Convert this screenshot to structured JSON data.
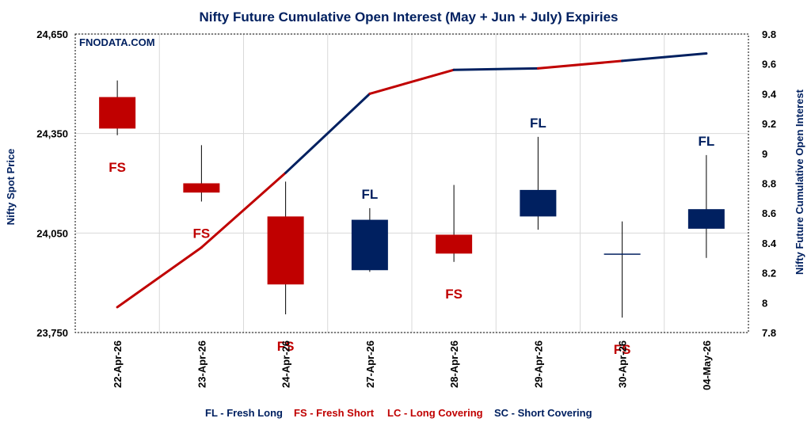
{
  "chart_data": {
    "type": "candlestick",
    "title": "Nifty Future Cumulative Open Interest (May + Jun + July) Expiries",
    "watermark": "FNODATA.COM",
    "y_left_label": "Nifty Spot Price",
    "y_right_label": "Nifty Future Cumulative Open Interest",
    "y_left_ticks": [
      "24,650",
      "24,350",
      "24,050",
      "23,750"
    ],
    "y_left_range": [
      23750,
      24650
    ],
    "y_right_ticks": [
      "9.8",
      "9.6",
      "9.4",
      "9.2",
      "9",
      "8.8",
      "8.6",
      "8.4",
      "8.2",
      "8",
      "7.8"
    ],
    "y_right_range": [
      7.8,
      9.8
    ],
    "categories": [
      "22-Apr-26",
      "23-Apr-26",
      "24-Apr-26",
      "27-Apr-26",
      "28-Apr-26",
      "29-Apr-26",
      "30-Apr-26",
      "04-May-26"
    ],
    "candles": [
      {
        "open": 24460,
        "close": 24365,
        "high": 24510,
        "low": 24345
      },
      {
        "open": 24200,
        "close": 24172,
        "high": 24315,
        "low": 24145
      },
      {
        "open": 24100,
        "close": 23895,
        "high": 24205,
        "low": 23805
      },
      {
        "open": 23938,
        "close": 24090,
        "high": 24125,
        "low": 23933
      },
      {
        "open": 24045,
        "close": 23988,
        "high": 24195,
        "low": 23963
      },
      {
        "open": 24100,
        "close": 24180,
        "high": 24340,
        "low": 24060
      },
      {
        "open": 23985,
        "close": 23988,
        "high": 24085,
        "low": 23795
      },
      {
        "open": 24063,
        "close": 24122,
        "high": 24285,
        "low": 23975
      }
    ],
    "open_interest": [
      7.97,
      8.37,
      8.87,
      9.4,
      9.56,
      9.57,
      9.62,
      9.67
    ],
    "annotations": [
      "FS",
      "FS",
      "FS",
      "FL",
      "FS",
      "FL",
      "FS",
      "FL"
    ],
    "colors": {
      "FL": "#002060",
      "FS": "#c00000",
      "grid": "#d9d9d9"
    },
    "legend": [
      {
        "text": "FL - Fresh Long",
        "color": "#002060"
      },
      {
        "text": "FS - Fresh Short",
        "color": "#c00000"
      },
      {
        "text": "LC - Long Covering",
        "color": "#c00000"
      },
      {
        "text": "SC - Short Covering",
        "color": "#002060"
      }
    ]
  }
}
